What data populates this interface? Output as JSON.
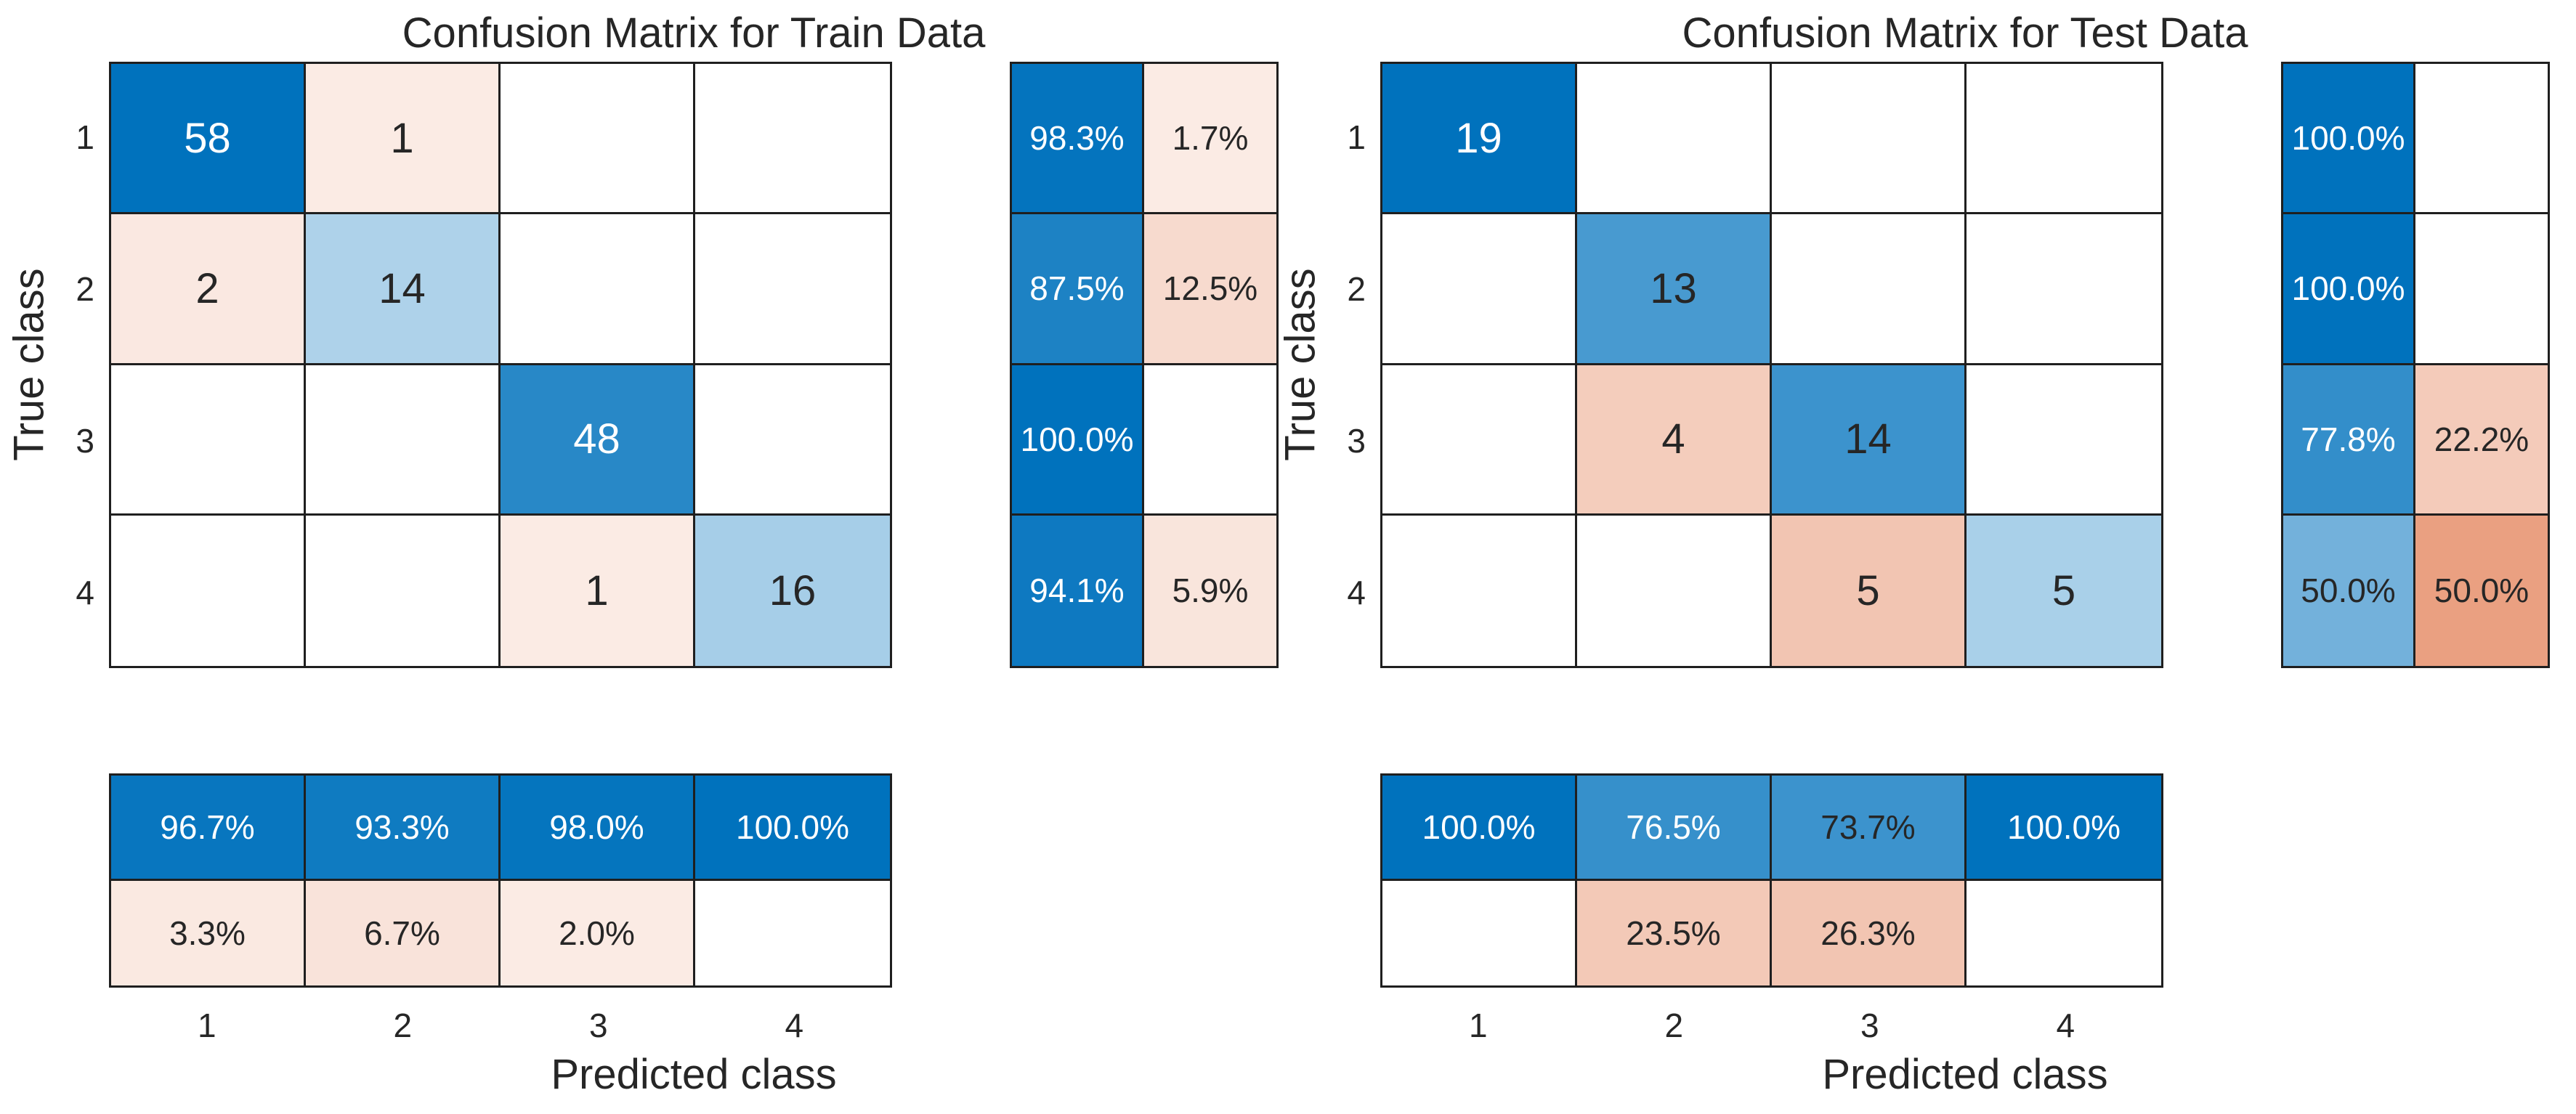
{
  "colors": {
    "diagonal_base": "#0072BD",
    "off_diagonal_base": "#D95319",
    "grid_line": "#1F1F1F",
    "text_dark": "#262626",
    "text_light": "#FFFFFF",
    "background": "#FFFFFF"
  },
  "chart_data": [
    {
      "type": "heatmap",
      "subtype": "confusion-matrix",
      "title": "Confusion Matrix for Train Data",
      "xlabel": "Predicted class",
      "ylabel": "True class",
      "classes": [
        "1",
        "2",
        "3",
        "4"
      ],
      "matrix": [
        [
          58,
          1,
          0,
          0
        ],
        [
          2,
          14,
          0,
          0
        ],
        [
          0,
          0,
          48,
          0
        ],
        [
          0,
          0,
          1,
          16
        ]
      ],
      "max_count": 58,
      "row_summary_pct": [
        [
          98.3,
          1.7
        ],
        [
          87.5,
          12.5
        ],
        [
          100.0,
          0
        ],
        [
          94.1,
          5.9
        ]
      ],
      "col_summary_pct": [
        [
          96.7,
          93.3,
          98.0,
          100.0
        ],
        [
          3.3,
          6.7,
          2.0,
          0
        ]
      ],
      "grid": true,
      "legend_position": "none"
    },
    {
      "type": "heatmap",
      "subtype": "confusion-matrix",
      "title": "Confusion Matrix for Test Data",
      "xlabel": "Predicted class",
      "ylabel": "True class",
      "classes": [
        "1",
        "2",
        "3",
        "4"
      ],
      "matrix": [
        [
          19,
          0,
          0,
          0
        ],
        [
          0,
          13,
          0,
          0
        ],
        [
          0,
          4,
          14,
          0
        ],
        [
          0,
          0,
          5,
          5
        ]
      ],
      "max_count": 19,
      "row_summary_pct": [
        [
          100.0,
          0
        ],
        [
          100.0,
          0
        ],
        [
          77.8,
          22.2
        ],
        [
          50.0,
          50.0
        ]
      ],
      "col_summary_pct": [
        [
          100.0,
          76.5,
          73.7,
          100.0
        ],
        [
          0,
          23.5,
          26.3,
          0
        ]
      ],
      "grid": true,
      "legend_position": "none"
    }
  ]
}
